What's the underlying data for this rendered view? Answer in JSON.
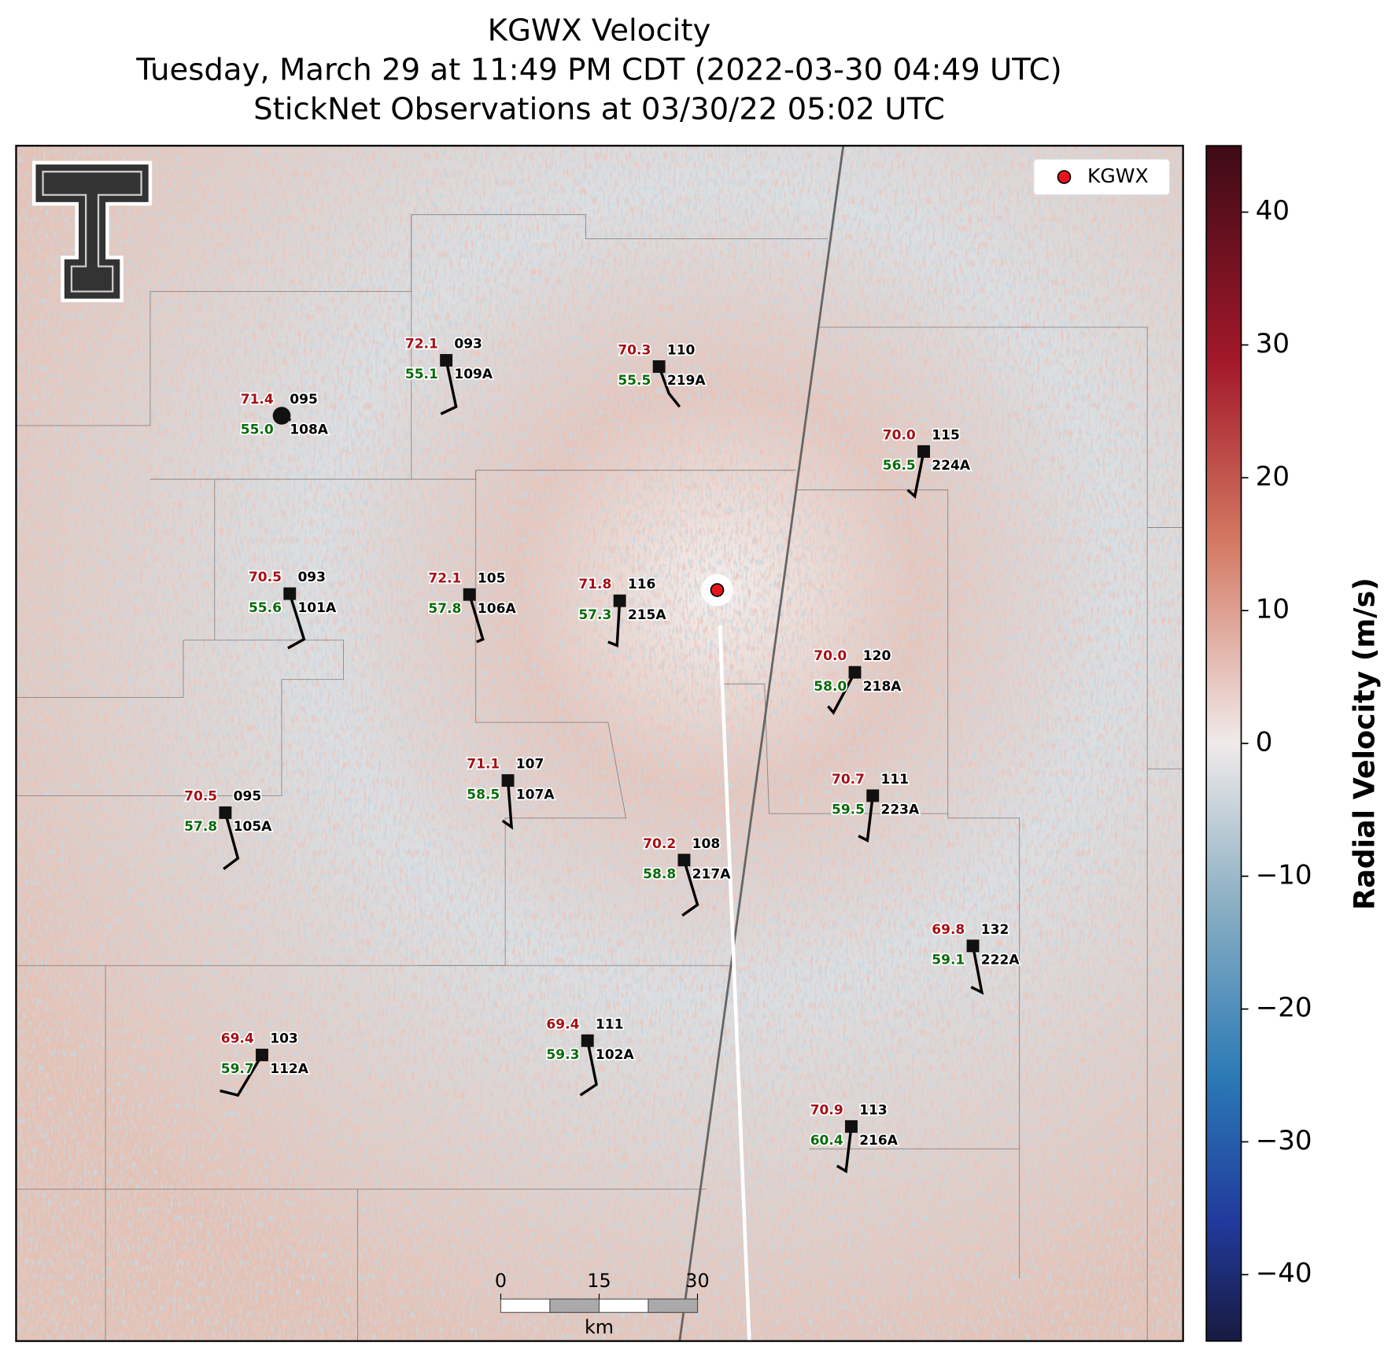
{
  "title": [
    "KGWX Velocity",
    "Tuesday, March 29 at 11:49 PM CDT (2022-03-30 04:49 UTC)",
    "StickNet Observations at 03/30/22 05:02 UTC"
  ],
  "legend": {
    "label": "KGWX",
    "color": "#e8141c"
  },
  "colorbar": {
    "label": "Radial Velocity (m/s)",
    "lim": [
      -45,
      45
    ],
    "ticks": [
      {
        "value": 40,
        "label": "40"
      },
      {
        "value": 30,
        "label": "30"
      },
      {
        "value": 20,
        "label": "20"
      },
      {
        "value": 10,
        "label": "10"
      },
      {
        "value": 0,
        "label": "0"
      },
      {
        "value": -10,
        "label": "−10"
      },
      {
        "value": -20,
        "label": "−20"
      },
      {
        "value": -30,
        "label": "−30"
      },
      {
        "value": -40,
        "label": "−40"
      }
    ]
  },
  "scalebar": {
    "ticks": [
      0,
      15,
      30
    ],
    "unit": "km"
  },
  "stations": [
    {
      "temperature": "71.4",
      "dewpoint": "55.0",
      "code": "095",
      "id": "108A"
    },
    {
      "temperature": "72.1",
      "dewpoint": "55.1",
      "code": "093",
      "id": "109A"
    },
    {
      "temperature": "70.3",
      "dewpoint": "55.5",
      "code": "110",
      "id": "219A"
    },
    {
      "temperature": "70.0",
      "dewpoint": "56.5",
      "code": "115",
      "id": "224A"
    },
    {
      "temperature": "70.5",
      "dewpoint": "55.6",
      "code": "093",
      "id": "101A"
    },
    {
      "temperature": "72.1",
      "dewpoint": "57.8",
      "code": "105",
      "id": "106A"
    },
    {
      "temperature": "71.8",
      "dewpoint": "57.3",
      "code": "116",
      "id": "215A"
    },
    {
      "temperature": "70.0",
      "dewpoint": "58.0",
      "code": "120",
      "id": "218A"
    },
    {
      "temperature": "71.1",
      "dewpoint": "58.5",
      "code": "107",
      "id": "107A"
    },
    {
      "temperature": "70.5",
      "dewpoint": "57.8",
      "code": "095",
      "id": "105A"
    },
    {
      "temperature": "70.7",
      "dewpoint": "59.5",
      "code": "111",
      "id": "223A"
    },
    {
      "temperature": "70.2",
      "dewpoint": "58.8",
      "code": "108",
      "id": "217A"
    },
    {
      "temperature": "69.8",
      "dewpoint": "59.1",
      "code": "132",
      "id": "222A"
    },
    {
      "temperature": "69.4",
      "dewpoint": "59.7",
      "code": "103",
      "id": "112A"
    },
    {
      "temperature": "69.4",
      "dewpoint": "59.3",
      "code": "111",
      "id": "102A"
    },
    {
      "temperature": "70.9",
      "dewpoint": "60.4",
      "code": "113",
      "id": "216A"
    }
  ]
}
